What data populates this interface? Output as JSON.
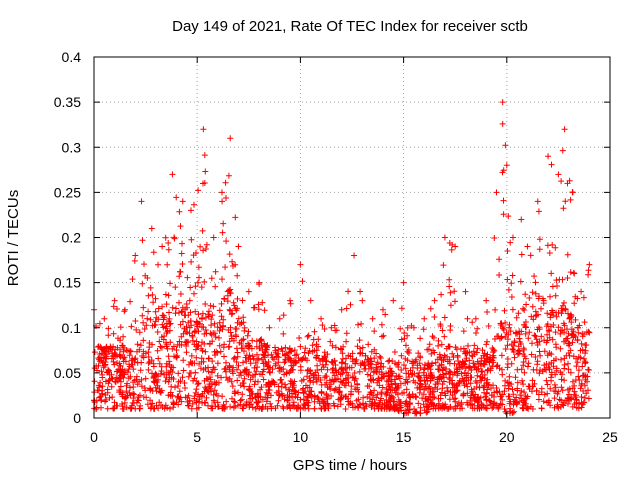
{
  "chart_data": {
    "type": "scatter",
    "title": "Day 149 of 2021, Rate Of TEC Index for receiver sctb",
    "xlabel": "GPS time / hours",
    "ylabel": "ROTI / TECUs",
    "xlim": [
      0,
      25
    ],
    "ylim": [
      0,
      0.4
    ],
    "x_ticks": [
      0,
      5,
      10,
      15,
      20,
      25
    ],
    "x_tick_labels": [
      "0",
      "5",
      "10",
      "15",
      "20",
      "25"
    ],
    "y_ticks": [
      0,
      0.05,
      0.1,
      0.15,
      0.2,
      0.25,
      0.3,
      0.35,
      0.4
    ],
    "y_tick_labels": [
      "0",
      "0.05",
      "0.1",
      "0.15",
      "0.2",
      "0.25",
      "0.3",
      "0.35",
      "0.4"
    ],
    "grid": true,
    "marker": "+",
    "color": "#ff0000",
    "data_range_x": [
      0,
      24
    ],
    "envelope": {
      "x": [
        0,
        0.5,
        1,
        1.5,
        2,
        2.3,
        2.8,
        3.3,
        3.8,
        4.3,
        4.7,
        5.3,
        5.8,
        6.2,
        6.6,
        7,
        7.5,
        8,
        8.5,
        9,
        9.5,
        10,
        10.5,
        11,
        11.5,
        12,
        12.6,
        13,
        13.5,
        14,
        14.5,
        15,
        15.5,
        16,
        16.5,
        17,
        17.5,
        18,
        18.5,
        19,
        19.5,
        19.8,
        20,
        20.3,
        20.7,
        21,
        21.5,
        22,
        22.5,
        22.8,
        23.2,
        23.6,
        24
      ],
      "max": [
        0.12,
        0.11,
        0.13,
        0.12,
        0.18,
        0.24,
        0.21,
        0.19,
        0.27,
        0.24,
        0.23,
        0.32,
        0.2,
        0.25,
        0.31,
        0.19,
        0.14,
        0.15,
        0.1,
        0.11,
        0.13,
        0.17,
        0.13,
        0.11,
        0.1,
        0.12,
        0.18,
        0.13,
        0.11,
        0.12,
        0.13,
        0.15,
        0.1,
        0.11,
        0.13,
        0.2,
        0.19,
        0.14,
        0.11,
        0.13,
        0.25,
        0.35,
        0.28,
        0.2,
        0.22,
        0.19,
        0.24,
        0.29,
        0.27,
        0.32,
        0.25,
        0.14,
        0.17
      ],
      "typical": [
        0.05,
        0.05,
        0.05,
        0.05,
        0.06,
        0.07,
        0.07,
        0.07,
        0.08,
        0.08,
        0.07,
        0.08,
        0.08,
        0.08,
        0.09,
        0.07,
        0.06,
        0.06,
        0.05,
        0.05,
        0.05,
        0.05,
        0.05,
        0.05,
        0.04,
        0.04,
        0.05,
        0.05,
        0.04,
        0.04,
        0.04,
        0.04,
        0.04,
        0.04,
        0.04,
        0.05,
        0.05,
        0.05,
        0.04,
        0.04,
        0.06,
        0.08,
        0.07,
        0.06,
        0.07,
        0.07,
        0.08,
        0.08,
        0.08,
        0.08,
        0.07,
        0.06,
        0.06
      ],
      "min": [
        0.01,
        0.01,
        0.01,
        0.01,
        0.01,
        0.01,
        0.01,
        0.01,
        0.01,
        0.01,
        0.01,
        0.01,
        0.01,
        0.01,
        0.01,
        0.01,
        0.01,
        0.01,
        0.01,
        0.01,
        0.01,
        0.01,
        0.01,
        0.01,
        0.01,
        0.01,
        0.01,
        0.01,
        0.01,
        0.01,
        0.01,
        0.005,
        0.005,
        0.005,
        0.01,
        0.01,
        0.01,
        0.01,
        0.01,
        0.01,
        0.01,
        0.01,
        0.005,
        0.005,
        0.01,
        0.01,
        0.01,
        0.01,
        0.01,
        0.01,
        0.01,
        0.01,
        0.01
      ]
    },
    "n_samples": 2600
  }
}
